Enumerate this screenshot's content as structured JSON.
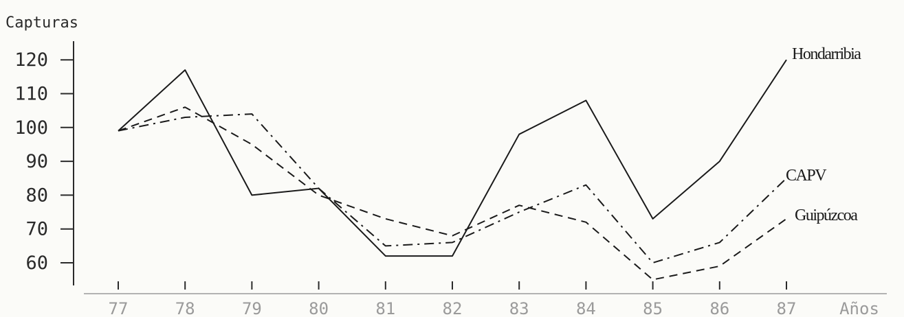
{
  "chart_data": {
    "type": "line",
    "ylabel": "Capturas",
    "xlabel": "Años",
    "x": [
      "77",
      "78",
      "79",
      "80",
      "81",
      "82",
      "83",
      "84",
      "85",
      "86",
      "87"
    ],
    "y_ticks": [
      60,
      70,
      80,
      90,
      100,
      110,
      120
    ],
    "ylim": [
      55,
      125
    ],
    "grid": false,
    "series": [
      {
        "name": "Hondarribia",
        "style": "solid",
        "color": "#1a1a1a",
        "values": [
          99,
          117,
          80,
          82,
          62,
          62,
          98,
          108,
          73,
          90,
          120
        ]
      },
      {
        "name": "CAPV",
        "style": "dash-dot",
        "color": "#1a1a1a",
        "values": [
          99,
          103,
          104,
          82,
          65,
          66,
          75,
          83,
          60,
          66,
          85
        ]
      },
      {
        "name": "Guipúzcoa",
        "style": "dashed",
        "color": "#1a1a1a",
        "values": [
          99,
          106,
          95,
          80,
          73,
          68,
          77,
          72,
          55,
          59,
          73
        ]
      }
    ]
  }
}
